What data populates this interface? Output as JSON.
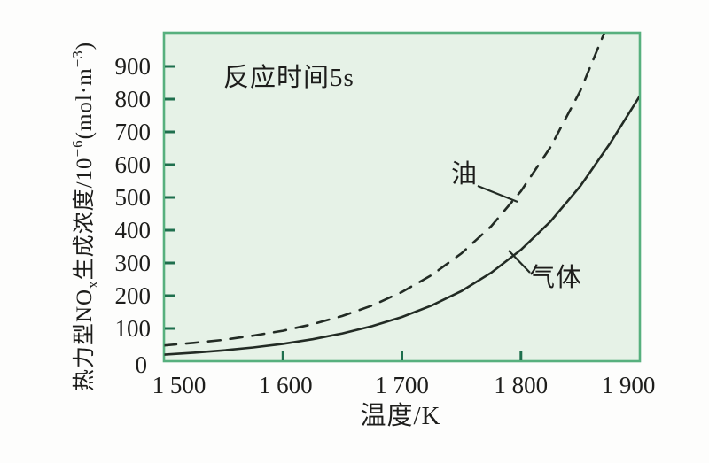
{
  "theme": {
    "page_bg": "#fdfdfc",
    "plot_fill": "#e6f2e7",
    "border_color": "#57b07e",
    "tick_color": "#1e6f4d",
    "curve_color": "#222b24",
    "text_color": "#1d1d1b"
  },
  "annotation": "反应时间5s",
  "labels": {
    "oil": "油",
    "gas": "气体"
  },
  "axes": {
    "x_label": "温度/K",
    "x_tick_labels": [
      "1 500",
      "1 600",
      "1 700",
      "1 800",
      "1 900"
    ],
    "y_tick_labels": [
      "0",
      "100",
      "200",
      "300",
      "400",
      "500",
      "600",
      "700",
      "800",
      "900"
    ],
    "y_label_segments": {
      "s1": "热力型NO",
      "s2": "x",
      "s3": "生成浓度/10",
      "s4": "−6",
      "s5": "(mol·m",
      "s6": "−3",
      "s7": ")"
    }
  },
  "chart_data": {
    "type": "line",
    "title": "",
    "xlabel": "温度/K",
    "ylabel": "热力型NOx生成浓度/10−6(mol·m−3)",
    "annotation": "反应时间5s",
    "xlim": [
      1500,
      1900
    ],
    "ylim": [
      0,
      1000
    ],
    "x_ticks": [
      1500,
      1600,
      1700,
      1800,
      1900
    ],
    "y_ticks": [
      0,
      100,
      200,
      300,
      400,
      500,
      600,
      700,
      800,
      900
    ],
    "grid": false,
    "legend_position": "inline-curve-labels",
    "series": [
      {
        "name": "油",
        "style": "dashed",
        "x": [
          1500,
          1525,
          1550,
          1575,
          1600,
          1625,
          1650,
          1675,
          1700,
          1725,
          1750,
          1775,
          1800,
          1825,
          1850,
          1875
        ],
        "y": [
          48,
          56,
          65,
          78,
          93,
          113,
          138,
          170,
          211,
          263,
          329,
          412,
          519,
          654,
          826,
          1045
        ]
      },
      {
        "name": "气体",
        "style": "solid",
        "x": [
          1500,
          1525,
          1550,
          1575,
          1600,
          1625,
          1650,
          1675,
          1700,
          1725,
          1750,
          1775,
          1800,
          1825,
          1850,
          1875,
          1900
        ],
        "y": [
          20,
          26,
          33,
          42,
          53,
          67,
          85,
          107,
          135,
          170,
          214,
          270,
          340,
          427,
          535,
          665,
          810
        ]
      }
    ]
  }
}
